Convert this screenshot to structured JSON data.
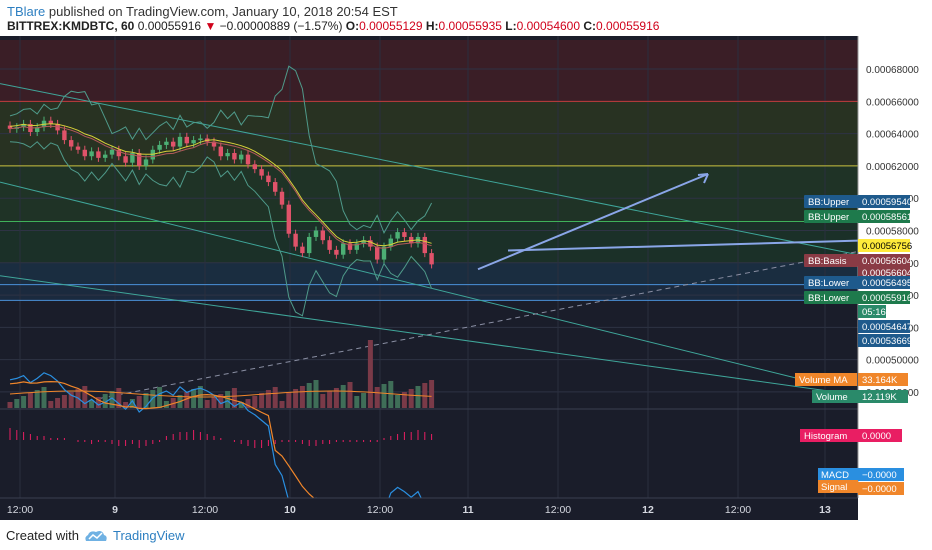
{
  "header": {
    "author": "TBlare",
    "published_text": "published on TradingView.com, January 10, 2018 20:54 EST",
    "symbol": "BITTREX:KMDBTC, 60",
    "last": "0.00055916",
    "change": "−0.00000889 (−1.57%)",
    "o_label": "O:",
    "o": "0.00055129",
    "h_label": "H:",
    "h": "0.00055935",
    "l_label": "L:",
    "l": "0.00054600",
    "c_label": "C:",
    "c": "0.00055916"
  },
  "footer": {
    "created_with": "Created with",
    "brand": "TradingView"
  },
  "colors": {
    "up": "#4caf74",
    "down": "#e0536a",
    "bb_line": "#4f9a8a",
    "macd": "#2a8fe0",
    "signal": "#f0862a",
    "histogram": "#e91e63",
    "volume_ma": "#f0862a"
  },
  "chart_data": [
    {
      "type": "candlestick",
      "symbol": "BITTREX:KMDBTC",
      "interval": "60",
      "ylim": [
        0.000475,
        0.000698
      ],
      "y_ticks": [
        "0.00068000",
        "0.00066000",
        "0.00064000",
        "0.00062000",
        "0.00060000",
        "0.00058000",
        "0.00056000",
        "0.00054000",
        "0.00052000",
        "0.00050000",
        "0.00048000"
      ],
      "x_ticks": [
        "12:00",
        "9",
        "12:00",
        "10",
        "12:00",
        "11",
        "12:00",
        "12",
        "12:00",
        "13"
      ],
      "horizontal_levels": [
        0.00066,
        0.00062,
        0.0005856,
        0.00054647,
        0.00053669
      ],
      "price_labels": [
        {
          "label": "BB:Upper",
          "value": "0.00059540"
        },
        {
          "label": "BB:Upper",
          "value": "0.00058561"
        },
        {
          "label": "",
          "value": "0.00056756"
        },
        {
          "label": "BB:Basis",
          "value": "0.00056604"
        },
        {
          "label": "",
          "value": "0.00056604"
        },
        {
          "label": "BB:Lower",
          "value": "0.00056495"
        },
        {
          "label": "BB:Lower",
          "value": "0.00055916"
        },
        {
          "label": "",
          "value": "05:16"
        },
        {
          "label": "",
          "value": "0.00054647"
        },
        {
          "label": "",
          "value": "0.00053669"
        }
      ],
      "candles_close": [
        0.000643,
        0.000644,
        0.000646,
        0.000641,
        0.000644,
        0.000648,
        0.000646,
        0.000642,
        0.000636,
        0.000632,
        0.00063,
        0.000626,
        0.000629,
        0.000625,
        0.000627,
        0.00063,
        0.000626,
        0.000622,
        0.000628,
        0.00062,
        0.000624,
        0.00063,
        0.000633,
        0.000635,
        0.000632,
        0.000638,
        0.000634,
        0.000636,
        0.000637,
        0.000635,
        0.000632,
        0.000626,
        0.000628,
        0.000624,
        0.000627,
        0.000621,
        0.000618,
        0.000614,
        0.00061,
        0.000604,
        0.000596,
        0.000578,
        0.00057,
        0.000566,
        0.000576,
        0.00058,
        0.000574,
        0.000568,
        0.000565,
        0.000572,
        0.000568,
        0.000572,
        0.000574,
        0.00057,
        0.000562,
        0.00057,
        0.000575,
        0.000579,
        0.000576,
        0.000572,
        0.000576,
        0.000566,
        0.000559
      ],
      "volume_ma_value": "33.164K",
      "volume_value": "12.119K",
      "histogram_value": "0.0000",
      "macd_value": "−0.0000",
      "signal_value": "−0.0000"
    }
  ],
  "labels": {
    "volume_ma": "Volume MA",
    "volume": "Volume",
    "histogram": "Histogram",
    "macd": "MACD",
    "signal": "Signal"
  }
}
